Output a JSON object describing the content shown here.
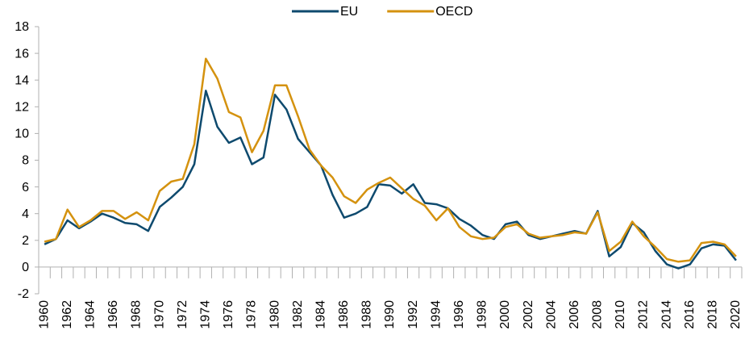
{
  "chart_data": {
    "type": "line",
    "categories": [
      "1960",
      null,
      "1962",
      null,
      "1964",
      null,
      "1966",
      null,
      "1968",
      null,
      "1970",
      null,
      "1972",
      null,
      "1974",
      null,
      "1976",
      null,
      "1978",
      null,
      "1980",
      null,
      "1982",
      null,
      "1984",
      null,
      "1986",
      null,
      "1988",
      null,
      "1990",
      null,
      "1992",
      null,
      "1994",
      null,
      "1996",
      null,
      "1998",
      null,
      "2000",
      null,
      "2002",
      null,
      "2004",
      null,
      "2006",
      null,
      "2008",
      null,
      "2010",
      null,
      "2012",
      null,
      "2014",
      null,
      "2016",
      null,
      "2018",
      null,
      "2020"
    ],
    "series": [
      {
        "name": "EU",
        "color": "#0e4a6e",
        "values": [
          1.7,
          2.1,
          3.5,
          2.9,
          3.4,
          4.0,
          3.7,
          3.3,
          3.2,
          2.7,
          4.5,
          5.2,
          6.0,
          7.7,
          13.2,
          10.5,
          9.3,
          9.7,
          7.7,
          8.2,
          12.9,
          11.8,
          9.6,
          8.6,
          7.6,
          5.4,
          3.7,
          4.0,
          4.5,
          6.2,
          6.1,
          5.5,
          6.2,
          4.8,
          4.7,
          4.4,
          3.6,
          3.1,
          2.4,
          2.1,
          3.2,
          3.4,
          2.4,
          2.1,
          2.3,
          2.5,
          2.7,
          2.5,
          4.2,
          0.8,
          1.5,
          3.3,
          2.6,
          1.2,
          0.2,
          -0.1,
          0.2,
          1.4,
          1.7,
          1.6,
          0.5
        ]
      },
      {
        "name": "OECD",
        "color": "#d4920f",
        "values": [
          1.9,
          2.1,
          4.3,
          3.0,
          3.5,
          4.2,
          4.2,
          3.6,
          4.1,
          3.5,
          5.7,
          6.4,
          6.6,
          9.2,
          15.6,
          14.1,
          11.6,
          11.2,
          8.6,
          10.2,
          13.6,
          13.6,
          11.3,
          8.8,
          7.6,
          6.7,
          5.3,
          4.8,
          5.8,
          6.3,
          6.7,
          5.9,
          5.1,
          4.6,
          3.5,
          4.4,
          3.0,
          2.3,
          2.1,
          2.2,
          3.0,
          3.2,
          2.5,
          2.2,
          2.3,
          2.4,
          2.6,
          2.5,
          4.1,
          1.2,
          1.9,
          3.4,
          2.3,
          1.5,
          0.6,
          0.4,
          0.5,
          1.8,
          1.9,
          1.7,
          0.8
        ]
      }
    ],
    "ylim": [
      -2,
      18
    ],
    "yticks": [
      -2,
      0,
      2,
      4,
      6,
      8,
      10,
      12,
      14,
      16,
      18
    ],
    "legend": "top"
  }
}
